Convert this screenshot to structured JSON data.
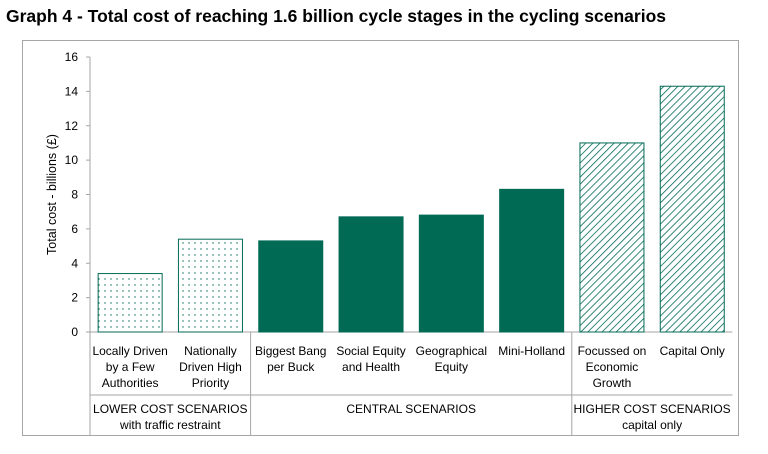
{
  "title": "Graph 4 - Total cost of reaching 1.6 billion cycle stages in the cycling scenarios",
  "chart_data": {
    "type": "bar",
    "title": "Graph 4 - Total cost of reaching 1.6 billion cycle stages in the cycling scenarios",
    "ylabel": "Total cost - billions (£)",
    "ylim": [
      0,
      16
    ],
    "yticks": [
      "0",
      "2",
      "4",
      "6",
      "8",
      "10",
      "12",
      "14",
      "16"
    ],
    "grid": false,
    "categories": [
      [
        "Locally Driven",
        "by a Few",
        "Authorities"
      ],
      [
        "Nationally",
        "Driven High",
        "Priority"
      ],
      [
        "Biggest Bang",
        "per Buck"
      ],
      [
        "Social Equity",
        "and Health"
      ],
      [
        "Geographical",
        "Equity"
      ],
      [
        "Mini-Holland"
      ],
      [
        "Focussed on",
        "Economic",
        "Growth"
      ],
      [
        "Capital Only"
      ]
    ],
    "values": [
      3.4,
      5.4,
      5.3,
      6.7,
      6.8,
      8.3,
      11.0,
      14.3
    ],
    "bar_styles": [
      "dotted",
      "dotted",
      "solid",
      "solid",
      "solid",
      "solid",
      "hatched",
      "hatched"
    ],
    "groups": [
      {
        "label": [
          "LOWER COST SCENARIOS",
          "with traffic restraint"
        ],
        "start": 0,
        "end": 1
      },
      {
        "label": [
          "CENTRAL SCENARIOS"
        ],
        "start": 2,
        "end": 5
      },
      {
        "label": [
          "HIGHER COST SCENARIOS",
          "capital only"
        ],
        "start": 6,
        "end": 7
      }
    ],
    "colors": {
      "bar": "#006a55",
      "axis": "#a6a6a6"
    }
  }
}
